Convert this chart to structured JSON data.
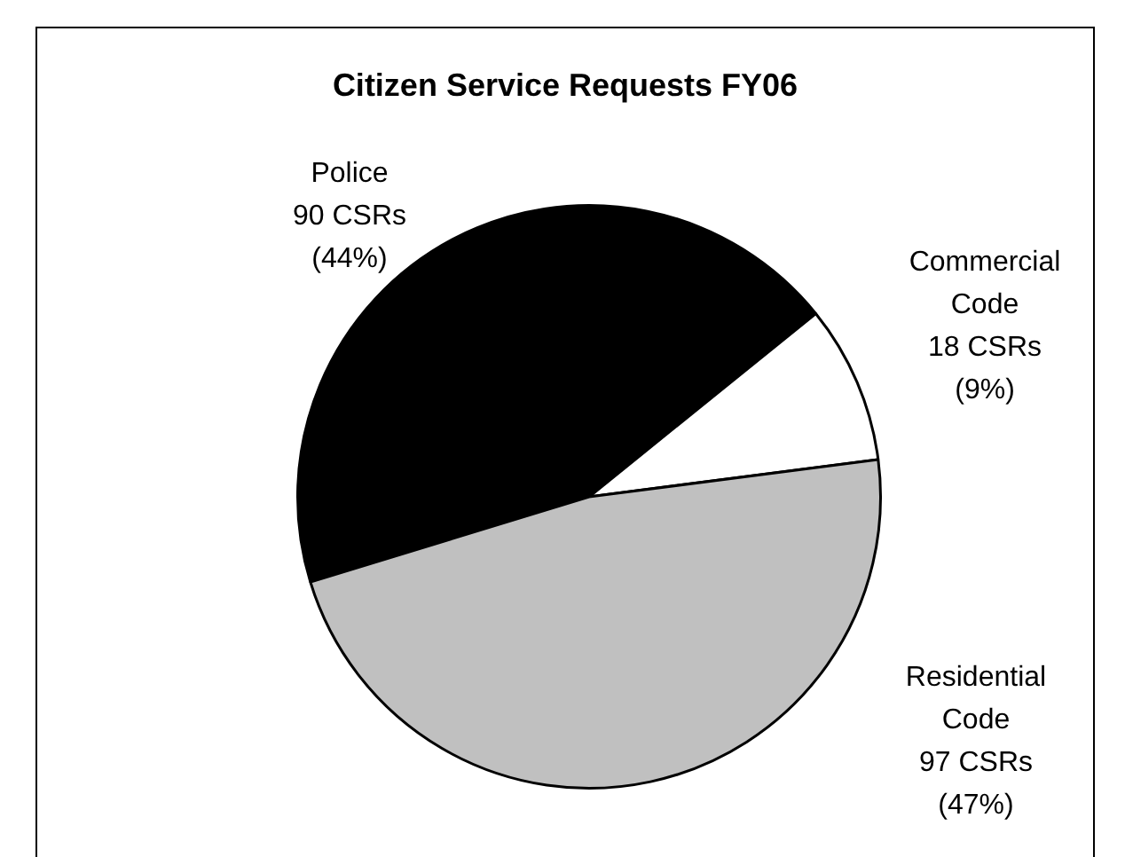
{
  "chart_data": {
    "type": "pie",
    "title": "Citizen Service Requests FY06",
    "categories": [
      "Police",
      "Commercial Code",
      "Residential Code"
    ],
    "values": [
      90,
      18,
      97
    ],
    "colors": [
      "#000000",
      "#ffffff",
      "#c0c0c0"
    ],
    "value_labels": [
      "90 CSRs (44%)",
      "18 CSRs (9%)",
      "97 CSRs (47%)"
    ],
    "legend": false
  }
}
